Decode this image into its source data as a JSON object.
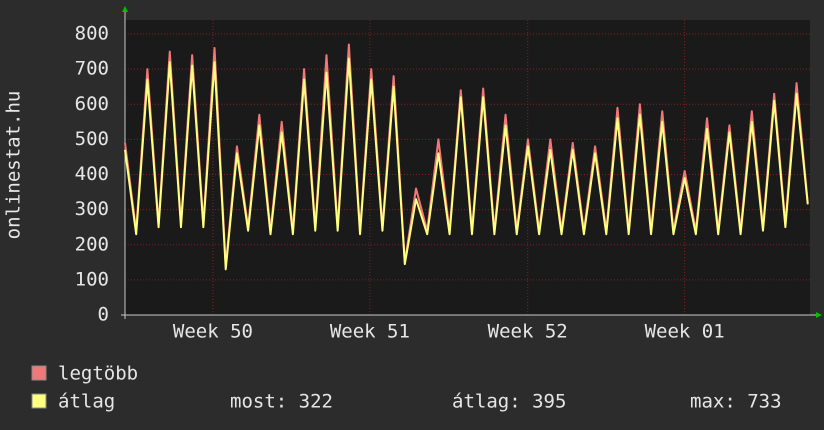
{
  "chart_data": {
    "type": "line",
    "y_label": "onlinestat.hu",
    "x": [
      0,
      0.5,
      1,
      1.5,
      2,
      2.5,
      3,
      3.5,
      4,
      4.5,
      5,
      5.5,
      6,
      6.5,
      7,
      7.5,
      8,
      8.5,
      9,
      9.5,
      10,
      10.5,
      11,
      11.5,
      12,
      12.5,
      13,
      13.5,
      14,
      14.5,
      15,
      15.5,
      16,
      16.5,
      17,
      17.5,
      18,
      18.5,
      19,
      19.5,
      20,
      20.5,
      21,
      21.5,
      22,
      22.5,
      23,
      23.5,
      24,
      24.5,
      25,
      25.5,
      26,
      26.5,
      27,
      27.5,
      28,
      28.5,
      29,
      29.5,
      30,
      30.5
    ],
    "series": [
      {
        "name": "legtöbb",
        "color": "#f07878",
        "values": [
          490,
          240,
          700,
          260,
          750,
          260,
          740,
          260,
          760,
          140,
          480,
          250,
          570,
          240,
          550,
          240,
          700,
          250,
          740,
          250,
          770,
          240,
          700,
          250,
          680,
          150,
          360,
          240,
          500,
          240,
          640,
          240,
          645,
          240,
          570,
          240,
          500,
          240,
          500,
          240,
          490,
          240,
          480,
          240,
          590,
          240,
          600,
          240,
          580,
          240,
          410,
          240,
          560,
          240,
          540,
          240,
          580,
          250,
          630,
          260,
          660,
          320
        ]
      },
      {
        "name": "átlag",
        "color": "#ffff80",
        "values": [
          470,
          230,
          670,
          250,
          720,
          250,
          710,
          250,
          720,
          130,
          460,
          240,
          540,
          230,
          520,
          230,
          670,
          240,
          690,
          240,
          730,
          230,
          670,
          240,
          650,
          145,
          330,
          230,
          460,
          230,
          620,
          230,
          620,
          230,
          540,
          230,
          480,
          230,
          470,
          230,
          470,
          230,
          460,
          230,
          560,
          230,
          570,
          230,
          550,
          230,
          390,
          230,
          530,
          230,
          520,
          230,
          550,
          240,
          610,
          250,
          630,
          315
        ]
      }
    ],
    "xlim": [
      0,
      30.6
    ],
    "xticks": [
      {
        "value": 3.93,
        "label": "Week 50"
      },
      {
        "value": 10.94,
        "label": "Week 51"
      },
      {
        "value": 17.99,
        "label": "Week 52"
      },
      {
        "value": 25.0,
        "label": "Week 01"
      }
    ],
    "ylim": [
      0,
      800
    ],
    "yticks": [
      0,
      100,
      200,
      300,
      400,
      500,
      600,
      700,
      800
    ],
    "grid": true,
    "stats": [
      "most: 322",
      "átlag: 395",
      "max: 733"
    ]
  }
}
